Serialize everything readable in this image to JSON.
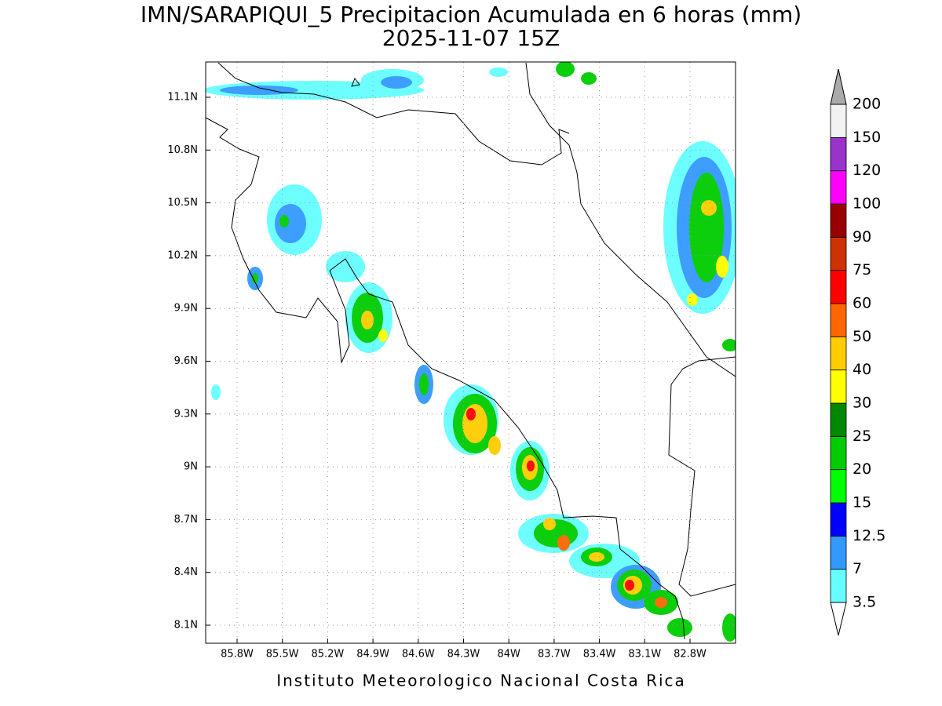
{
  "header": {
    "title": "IMN/SARAPIQUI_5 Precipitacion Acumulada en 6 horas (mm)",
    "subtitle": "2025-11-07 15Z"
  },
  "map": {
    "lon_ticks": [
      "85.8W",
      "85.5W",
      "85.2W",
      "84.9W",
      "84.6W",
      "84.3W",
      "84W",
      "83.7W",
      "83.4W",
      "83.1W",
      "82.8W"
    ],
    "lat_ticks": [
      "11.1N",
      "10.8N",
      "10.5N",
      "10.2N",
      "9.9N",
      "9.6N",
      "9.3N",
      "9N",
      "8.7N",
      "8.4N",
      "8.1N"
    ]
  },
  "colorbar": {
    "levels": [
      "3.5",
      "7",
      "12.5",
      "15",
      "20",
      "25",
      "30",
      "40",
      "50",
      "60",
      "75",
      "90",
      "100",
      "120",
      "150",
      "200"
    ],
    "colors": [
      "#66ffff",
      "#3399ff",
      "#0000ff",
      "#00ff00",
      "#00cc00",
      "#008800",
      "#ffff00",
      "#ffcc00",
      "#ff6600",
      "#ff0000",
      "#cc3300",
      "#990000",
      "#ff00ff",
      "#9933cc",
      "#f2f2f2"
    ],
    "over_color": "#aaaaaa",
    "under_color": "#ffffff"
  },
  "footer": "Instituto Meteorologico Nacional Costa Rica"
}
